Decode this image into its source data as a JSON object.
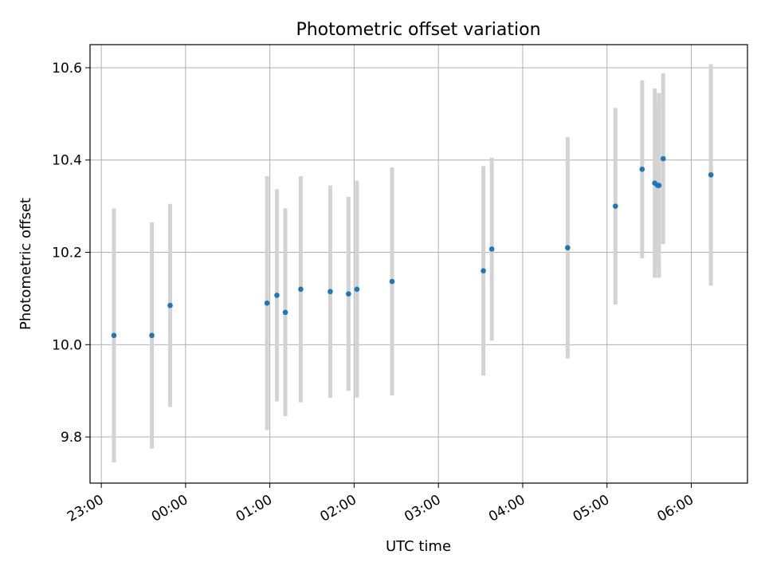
{
  "chart_data": {
    "type": "scatter",
    "title": "Photometric offset variation",
    "xlabel": "UTC time",
    "ylabel": "Photometric offset",
    "grid": true,
    "legend": "none",
    "xlim": [
      "22:52",
      "06:40"
    ],
    "ylim": [
      9.7,
      10.65
    ],
    "x_ticks": [
      "23:00",
      "00:00",
      "01:00",
      "02:00",
      "03:00",
      "04:00",
      "05:00",
      "06:00"
    ],
    "y_ticks": [
      9.8,
      10.0,
      10.2,
      10.4,
      10.6
    ],
    "colors": {
      "point": "#1f77b4",
      "errorbar": "#d3d3d3",
      "grid": "#b0b0b0"
    },
    "points": [
      {
        "x": "23:09",
        "y": 10.02,
        "err": 0.275
      },
      {
        "x": "23:36",
        "y": 10.02,
        "err": 0.245
      },
      {
        "x": "23:49",
        "y": 10.085,
        "err": 0.22
      },
      {
        "x": "00:58",
        "y": 10.09,
        "err": 0.275
      },
      {
        "x": "01:05",
        "y": 10.107,
        "err": 0.23
      },
      {
        "x": "01:11",
        "y": 10.07,
        "err": 0.225
      },
      {
        "x": "01:22",
        "y": 10.12,
        "err": 0.245
      },
      {
        "x": "01:43",
        "y": 10.115,
        "err": 0.23
      },
      {
        "x": "01:56",
        "y": 10.11,
        "err": 0.21
      },
      {
        "x": "02:02",
        "y": 10.12,
        "err": 0.235
      },
      {
        "x": "02:27",
        "y": 10.137,
        "err": 0.247
      },
      {
        "x": "03:32",
        "y": 10.16,
        "err": 0.227
      },
      {
        "x": "03:38",
        "y": 10.207,
        "err": 0.198
      },
      {
        "x": "04:32",
        "y": 10.21,
        "err": 0.24
      },
      {
        "x": "05:06",
        "y": 10.3,
        "err": 0.213
      },
      {
        "x": "05:25",
        "y": 10.38,
        "err": 0.193
      },
      {
        "x": "05:34",
        "y": 10.35,
        "err": 0.205
      },
      {
        "x": "05:36",
        "y": 10.345,
        "err": 0.178
      },
      {
        "x": "05:37",
        "y": 10.345,
        "err": 0.2
      },
      {
        "x": "05:40",
        "y": 10.403,
        "err": 0.185
      },
      {
        "x": "06:14",
        "y": 10.368,
        "err": 0.24
      }
    ]
  }
}
